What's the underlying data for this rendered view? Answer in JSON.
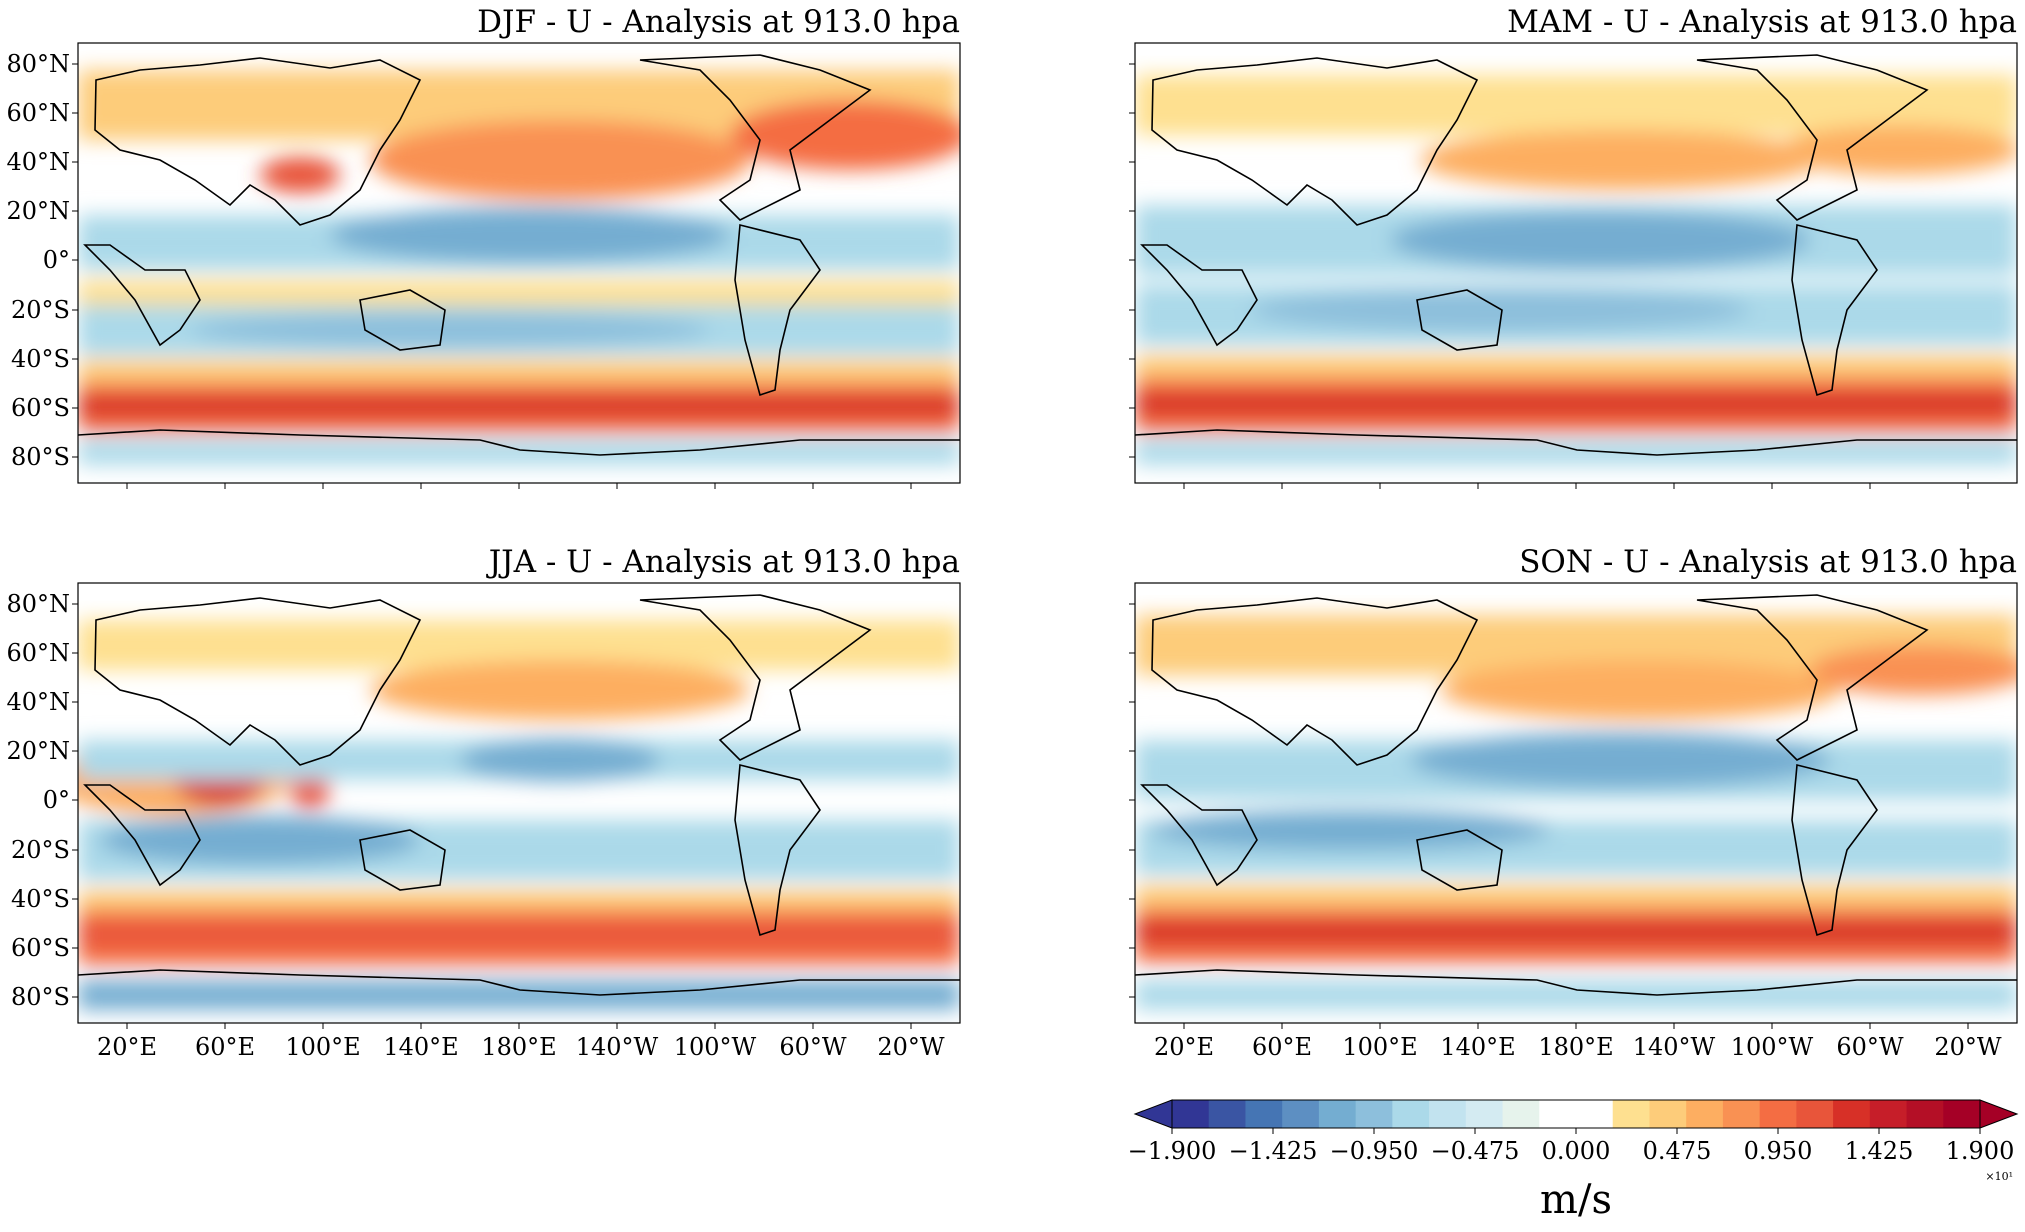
{
  "figure": {
    "panels": [
      {
        "id": "djf",
        "title": "DJF - U - Analysis at 913.0 hpa",
        "season": "DJF"
      },
      {
        "id": "mam",
        "title": "MAM - U - Analysis at 913.0 hpa",
        "season": "MAM"
      },
      {
        "id": "jja",
        "title": "JJA - U - Analysis at 913.0 hpa",
        "season": "JJA"
      },
      {
        "id": "son",
        "title": "SON - U - Analysis at 913.0 hpa",
        "season": "SON"
      }
    ],
    "lat_ticks": [
      "80°N",
      "60°N",
      "40°N",
      "20°N",
      "0°",
      "20°S",
      "40°S",
      "60°S",
      "80°S"
    ],
    "lon_ticks": [
      "20°E",
      "60°E",
      "100°E",
      "140°E",
      "180°E",
      "140°W",
      "100°W",
      "60°W",
      "20°W"
    ],
    "colorbar": {
      "ticks": [
        "−1.900",
        "−1.425",
        "−0.950",
        "−0.475",
        "0.000",
        "0.475",
        "0.950",
        "1.425",
        "1.900"
      ],
      "exponent": "×10¹",
      "units": "m/s",
      "min": -1.9,
      "max": 1.9,
      "levels": 24,
      "colors": [
        "#313695",
        "#3a55a3",
        "#4575b4",
        "#5d8fc2",
        "#74add1",
        "#8dbfdc",
        "#abd9e9",
        "#c2e3ef",
        "#d4ebf2",
        "#e6f3ec",
        "#ffffff",
        "#ffffff",
        "#fee090",
        "#fdcc7a",
        "#fdae61",
        "#f99153",
        "#f46d43",
        "#e8553a",
        "#d73027",
        "#c61e29",
        "#b40f26",
        "#a50026"
      ]
    }
  }
}
